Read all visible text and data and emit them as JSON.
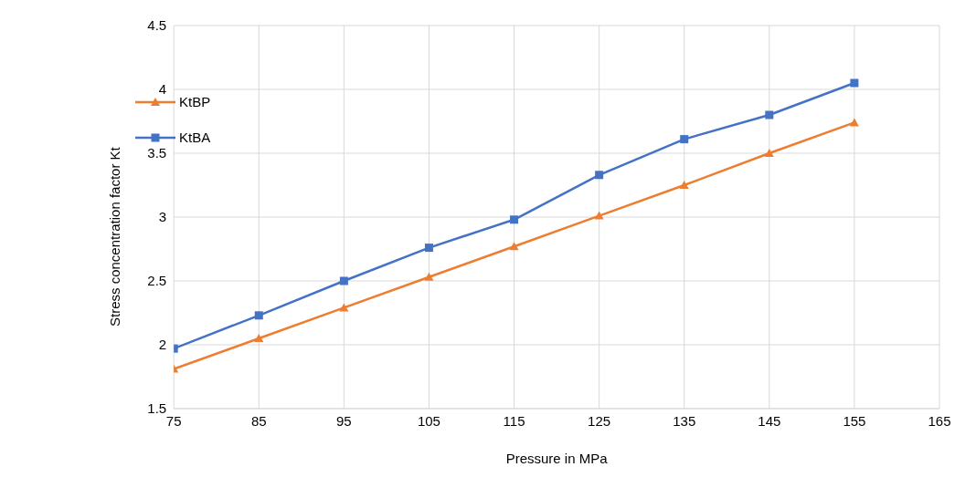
{
  "chart_data": {
    "type": "line",
    "xlabel": "Pressure in MPa",
    "ylabel": "Stress  concentration factor Kt",
    "x": [
      75,
      85,
      95,
      105,
      115,
      125,
      135,
      145,
      155
    ],
    "series": [
      {
        "name": "KtBP",
        "color": "#ed7d31",
        "marker": "triangle",
        "values": [
          1.81,
          2.05,
          2.29,
          2.53,
          2.77,
          3.01,
          3.25,
          3.5,
          3.74
        ]
      },
      {
        "name": "KtBA",
        "color": "#4472c4",
        "marker": "square",
        "values": [
          1.97,
          2.23,
          2.5,
          2.76,
          2.98,
          3.33,
          3.61,
          3.8,
          4.05
        ]
      }
    ],
    "xlim": [
      75,
      165
    ],
    "xticks": [
      75,
      85,
      95,
      105,
      115,
      125,
      135,
      145,
      155,
      165
    ],
    "ylim": [
      1.5,
      4.5
    ],
    "yticks": [
      1.5,
      2,
      2.5,
      3,
      3.5,
      4,
      4.5
    ],
    "grid": true,
    "legend": "top left",
    "line_style": "solid"
  }
}
